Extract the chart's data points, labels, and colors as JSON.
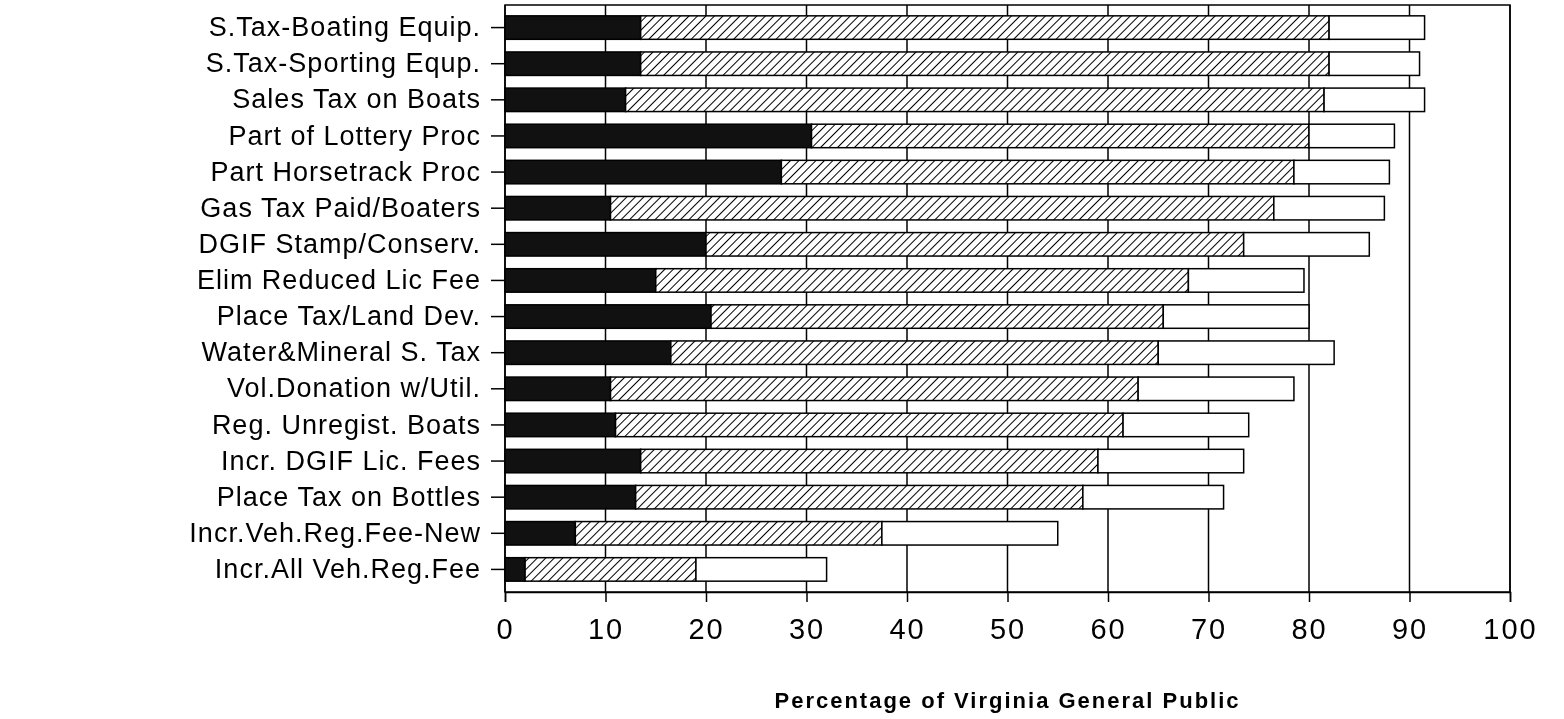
{
  "chart_data": {
    "type": "bar",
    "orientation": "horizontal",
    "stacked": true,
    "xlabel": "Percentage of Virginia General Public",
    "categories": [
      "S.Tax-Boating Equip.",
      "S.Tax-Sporting Equp.",
      "Sales Tax on Boats",
      "Part of Lottery Proc",
      "Part Horsetrack Proc",
      "Gas Tax Paid/Boaters",
      "DGIF Stamp/Conserv.",
      "Elim Reduced Lic Fee",
      "Place Tax/Land Dev.",
      "Water&Mineral S. Tax",
      "Vol.Donation w/Util.",
      "Reg. Unregist. Boats",
      "Incr. DGIF Lic. Fees",
      "Place Tax on Bottles",
      "Incr.Veh.Reg.Fee-New",
      "Incr.All Veh.Reg.Fee"
    ],
    "series": [
      {
        "color": "#111111",
        "values": [
          13.5,
          13.5,
          12,
          30.5,
          27.5,
          10.5,
          20,
          15,
          20.5,
          16.5,
          10.5,
          11,
          13.5,
          13,
          7,
          2
        ]
      },
      {
        "color": "#000000",
        "values": [
          68.5,
          68.5,
          69.5,
          49.5,
          51,
          66,
          53.5,
          53,
          45,
          48.5,
          52.5,
          50.5,
          45.5,
          44.5,
          30.5,
          17
        ]
      },
      {
        "color": "#ffffff",
        "values": [
          9.5,
          9,
          10,
          8.5,
          9.5,
          11,
          12.5,
          11.5,
          14.5,
          17.5,
          15.5,
          12.5,
          14.5,
          14,
          17.5,
          13
        ]
      }
    ],
    "xlim": [
      0,
      100
    ],
    "xticks": [
      0,
      10,
      20,
      30,
      40,
      50,
      60,
      70,
      80,
      90,
      100
    ],
    "grid": "x"
  }
}
